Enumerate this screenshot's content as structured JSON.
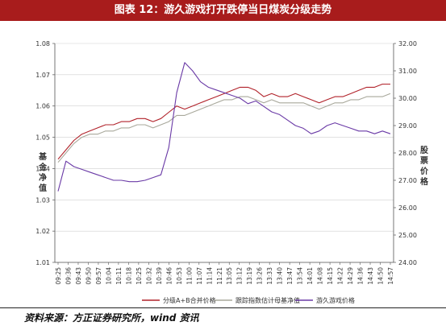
{
  "title": "图表 12：游久游戏打开跌停当日煤炭分级走势",
  "source": "资料来源：方正证券研究所，wind 资讯",
  "colors": {
    "title_bg": "#a81c1c",
    "fund_nav": "#b1222a",
    "mother_nav": "#a8a89b",
    "stock": "#6a3aa6"
  },
  "chart_data": {
    "type": "line",
    "y_left": {
      "label": "基金净值",
      "ylim": [
        1.01,
        1.08
      ],
      "ticks": [
        "1.01",
        "1.02",
        "1.03",
        "1.04",
        "1.05",
        "1.06",
        "1.07",
        "1.08"
      ]
    },
    "y_right": {
      "label": "股票价格",
      "ylim": [
        24.0,
        32.0
      ],
      "ticks": [
        "24.00",
        "25.00",
        "26.00",
        "27.00",
        "28.00",
        "29.00",
        "30.00",
        "31.00",
        "32.00"
      ]
    },
    "x_ticks": [
      "09:25",
      "09:36",
      "09:43",
      "09:50",
      "09:57",
      "10:04",
      "10:11",
      "10:18",
      "10:25",
      "10:32",
      "10:39",
      "10:46",
      "10:53",
      "11:00",
      "11:07",
      "11:14",
      "11:21",
      "13:05",
      "13:12",
      "13:19",
      "13:26",
      "13:33",
      "13:40",
      "13:47",
      "13:54",
      "14:01",
      "14:08",
      "14:15",
      "14:22",
      "14:29",
      "14:36",
      "14:43",
      "14:50",
      "14:57"
    ],
    "legend": {
      "placement": "bottom"
    },
    "series": [
      {
        "name": "分级A+B合并价格",
        "axis": "left",
        "color": "#b1222a",
        "values": [
          1.043,
          1.046,
          1.049,
          1.051,
          1.052,
          1.053,
          1.054,
          1.054,
          1.055,
          1.055,
          1.056,
          1.056,
          1.055,
          1.056,
          1.058,
          1.06,
          1.059,
          1.06,
          1.061,
          1.062,
          1.063,
          1.064,
          1.065,
          1.066,
          1.066,
          1.065,
          1.063,
          1.064,
          1.063,
          1.063,
          1.064,
          1.063,
          1.062,
          1.061,
          1.062,
          1.063,
          1.063,
          1.064,
          1.065,
          1.066,
          1.066,
          1.067,
          1.067
        ]
      },
      {
        "name": "跟踪指数估计母基净值",
        "axis": "left",
        "color": "#a8a89b",
        "values": [
          1.042,
          1.045,
          1.048,
          1.05,
          1.051,
          1.051,
          1.052,
          1.052,
          1.053,
          1.053,
          1.054,
          1.054,
          1.053,
          1.054,
          1.055,
          1.057,
          1.057,
          1.058,
          1.059,
          1.06,
          1.061,
          1.062,
          1.062,
          1.063,
          1.063,
          1.062,
          1.061,
          1.062,
          1.061,
          1.061,
          1.061,
          1.061,
          1.06,
          1.059,
          1.06,
          1.061,
          1.061,
          1.062,
          1.062,
          1.063,
          1.063,
          1.063,
          1.064
        ]
      },
      {
        "name": "游久游戏价格",
        "axis": "right",
        "color": "#6a3aa6",
        "values": [
          26.6,
          27.7,
          27.5,
          27.4,
          27.3,
          27.2,
          27.1,
          27.0,
          27.0,
          26.95,
          26.95,
          27.0,
          27.1,
          27.2,
          28.2,
          30.2,
          31.3,
          31.0,
          30.6,
          30.4,
          30.3,
          30.2,
          30.1,
          30.0,
          29.8,
          29.9,
          29.7,
          29.5,
          29.4,
          29.2,
          29.0,
          28.9,
          28.7,
          28.8,
          29.0,
          29.1,
          29.0,
          28.9,
          28.8,
          28.8,
          28.7,
          28.8,
          28.7
        ]
      }
    ]
  }
}
